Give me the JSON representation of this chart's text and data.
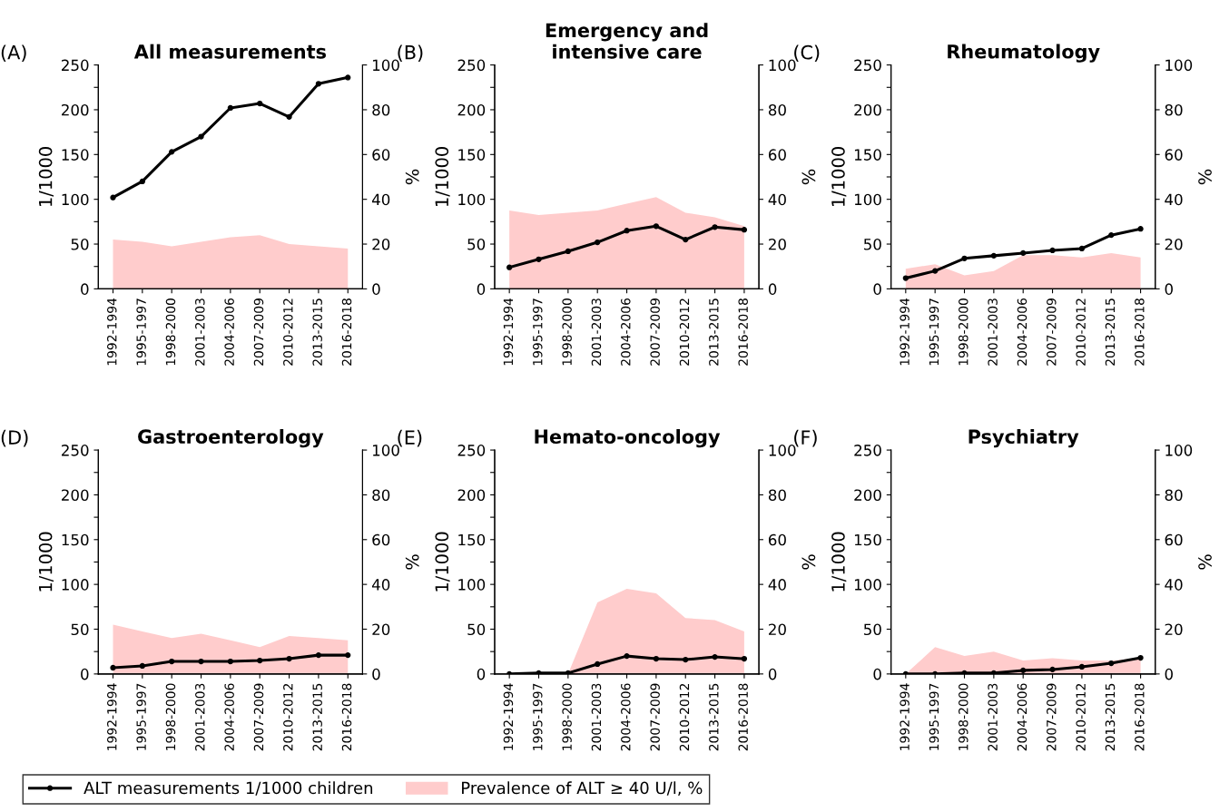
{
  "chart_data": [
    {
      "type": "line",
      "title": "All measurements",
      "annotations": [
        "(A)"
      ],
      "legend": "bottom",
      "ylabel": "1/1000",
      "y2label": "%",
      "categories": [
        "1992-1994",
        "1995-1997",
        "1998-2000",
        "2001-2003",
        "2004-2006",
        "2007-2009",
        "2010-2012",
        "2013-2015",
        "2016-2018"
      ],
      "ylim": [
        0,
        250
      ],
      "yticks": [
        0,
        {
          "value": 25,
          "label": null
        },
        50,
        {
          "value": 75,
          "label": null
        },
        100,
        {
          "value": 125,
          "label": null
        },
        150,
        {
          "value": 175,
          "label": null
        },
        200,
        {
          "value": 225,
          "label": null
        },
        250
      ],
      "y2lim": [
        0,
        100
      ],
      "y2ticks": [
        0,
        20,
        40,
        60,
        80,
        100
      ],
      "series": [
        {
          "type": "area",
          "axis": "y2",
          "name": "Prevalence of ALT ≥ 40 U/l, %",
          "color": "#ffcccc",
          "values": [
            22,
            21,
            19,
            21,
            23,
            24,
            20,
            19,
            18
          ]
        },
        {
          "type": "line",
          "name": "ALT measurements 1/1000 children",
          "marker": "circle",
          "color": "#000000",
          "values": [
            102,
            120,
            153,
            170,
            202,
            207,
            192,
            229,
            236
          ]
        }
      ]
    },
    {
      "type": "line",
      "title": "Emergency and\nintensive care",
      "annotations": [
        "(B)"
      ],
      "ylabel": "1/1000",
      "y2label": "%",
      "categories": [
        "1992-1994",
        "1995-1997",
        "1998-2000",
        "2001-2003",
        "2004-2006",
        "2007-2009",
        "2010-2012",
        "2013-2015",
        "2016-2018"
      ],
      "ylim": [
        0,
        250
      ],
      "yticks": [
        0,
        {
          "value": 25,
          "label": null
        },
        50,
        {
          "value": 75,
          "label": null
        },
        100,
        {
          "value": 125,
          "label": null
        },
        150,
        {
          "value": 175,
          "label": null
        },
        200,
        {
          "value": 225,
          "label": null
        },
        250
      ],
      "y2lim": [
        0,
        100
      ],
      "y2ticks": [
        0,
        20,
        40,
        60,
        80,
        100
      ],
      "series": [
        {
          "type": "area",
          "axis": "y2",
          "color": "#ffcccc",
          "values": [
            35,
            33,
            34,
            35,
            38,
            41,
            34,
            32,
            28
          ]
        },
        {
          "type": "line",
          "marker": "circle",
          "color": "#000000",
          "values": [
            24,
            33,
            42,
            52,
            65,
            70,
            55,
            69,
            66
          ]
        }
      ]
    },
    {
      "type": "line",
      "title": "Rheumatology",
      "annotations": [
        "(C)"
      ],
      "ylabel": "1/1000",
      "y2label": "%",
      "categories": [
        "1992-1994",
        "1995-1997",
        "1998-2000",
        "2001-2003",
        "2004-2006",
        "2007-2009",
        "2010-2012",
        "2013-2015",
        "2016-2018"
      ],
      "ylim": [
        0,
        250
      ],
      "yticks": [
        0,
        {
          "value": 25,
          "label": null
        },
        50,
        {
          "value": 75,
          "label": null
        },
        100,
        {
          "value": 125,
          "label": null
        },
        150,
        {
          "value": 175,
          "label": null
        },
        200,
        {
          "value": 225,
          "label": null
        },
        250
      ],
      "y2lim": [
        0,
        100
      ],
      "y2ticks": [
        0,
        20,
        40,
        60,
        80,
        100
      ],
      "series": [
        {
          "type": "area",
          "axis": "y2",
          "color": "#ffcccc",
          "values": [
            9,
            11,
            6,
            8,
            15,
            15,
            14,
            16,
            14
          ]
        },
        {
          "type": "line",
          "marker": "circle",
          "color": "#000000",
          "values": [
            12,
            20,
            34,
            37,
            40,
            43,
            45,
            60,
            67
          ]
        }
      ]
    },
    {
      "type": "line",
      "title": "Gastroenterology",
      "annotations": [
        "(D)"
      ],
      "ylabel": "1/1000",
      "y2label": "%",
      "categories": [
        "1992-1994",
        "1995-1997",
        "1998-2000",
        "2001-2003",
        "2004-2006",
        "2007-2009",
        "2010-2012",
        "2013-2015",
        "2016-2018"
      ],
      "ylim": [
        0,
        250
      ],
      "yticks": [
        0,
        {
          "value": 25,
          "label": null
        },
        50,
        {
          "value": 75,
          "label": null
        },
        100,
        {
          "value": 125,
          "label": null
        },
        150,
        {
          "value": 175,
          "label": null
        },
        200,
        {
          "value": 225,
          "label": null
        },
        250
      ],
      "y2lim": [
        0,
        100
      ],
      "y2ticks": [
        0,
        20,
        40,
        60,
        80,
        100
      ],
      "series": [
        {
          "type": "area",
          "axis": "y2",
          "color": "#ffcccc",
          "values": [
            22,
            19,
            16,
            18,
            15,
            12,
            17,
            16,
            15
          ]
        },
        {
          "type": "line",
          "marker": "circle",
          "color": "#000000",
          "values": [
            7,
            9,
            14,
            14,
            14,
            15,
            17,
            21,
            21
          ]
        }
      ]
    },
    {
      "type": "line",
      "title": "Hemato-oncology",
      "annotations": [
        "(E)"
      ],
      "ylabel": "1/1000",
      "y2label": "%",
      "categories": [
        "1992-1994",
        "1995-1997",
        "1998-2000",
        "2001-2003",
        "2004-2006",
        "2007-2009",
        "2010-2012",
        "2013-2015",
        "2016-2018"
      ],
      "ylim": [
        0,
        250
      ],
      "yticks": [
        0,
        {
          "value": 25,
          "label": null
        },
        50,
        {
          "value": 75,
          "label": null
        },
        100,
        {
          "value": 125,
          "label": null
        },
        150,
        {
          "value": 175,
          "label": null
        },
        200,
        {
          "value": 225,
          "label": null
        },
        250
      ],
      "y2lim": [
        0,
        100
      ],
      "y2ticks": [
        0,
        20,
        40,
        60,
        80,
        100
      ],
      "series": [
        {
          "type": "area",
          "axis": "y2",
          "color": "#ffcccc",
          "values": [
            0,
            0,
            0,
            32,
            38,
            36,
            25,
            24,
            19
          ]
        },
        {
          "type": "line",
          "marker": "circle",
          "color": "#000000",
          "values": [
            0,
            1,
            1,
            11,
            20,
            17,
            16,
            19,
            17
          ]
        }
      ]
    },
    {
      "type": "line",
      "title": "Psychiatry",
      "annotations": [
        "(F)"
      ],
      "ylabel": "1/1000",
      "y2label": "%",
      "categories": [
        "1992-1994",
        "1995-1997",
        "1998-2000",
        "2001-2003",
        "2004-2006",
        "2007-2009",
        "2010-2012",
        "2013-2015",
        "2016-2018"
      ],
      "ylim": [
        0,
        250
      ],
      "yticks": [
        0,
        {
          "value": 25,
          "label": null
        },
        50,
        {
          "value": 75,
          "label": null
        },
        100,
        {
          "value": 125,
          "label": null
        },
        150,
        {
          "value": 175,
          "label": null
        },
        200,
        {
          "value": 225,
          "label": null
        },
        250
      ],
      "y2lim": [
        0,
        100
      ],
      "y2ticks": [
        0,
        20,
        40,
        60,
        80,
        100
      ],
      "series": [
        {
          "type": "area",
          "axis": "y2",
          "color": "#ffcccc",
          "values": [
            0,
            12,
            8,
            10,
            6,
            7,
            6,
            6,
            7
          ]
        },
        {
          "type": "line",
          "marker": "circle",
          "color": "#000000",
          "values": [
            0,
            0,
            1,
            1,
            4,
            5,
            8,
            12,
            18
          ]
        }
      ]
    }
  ]
}
